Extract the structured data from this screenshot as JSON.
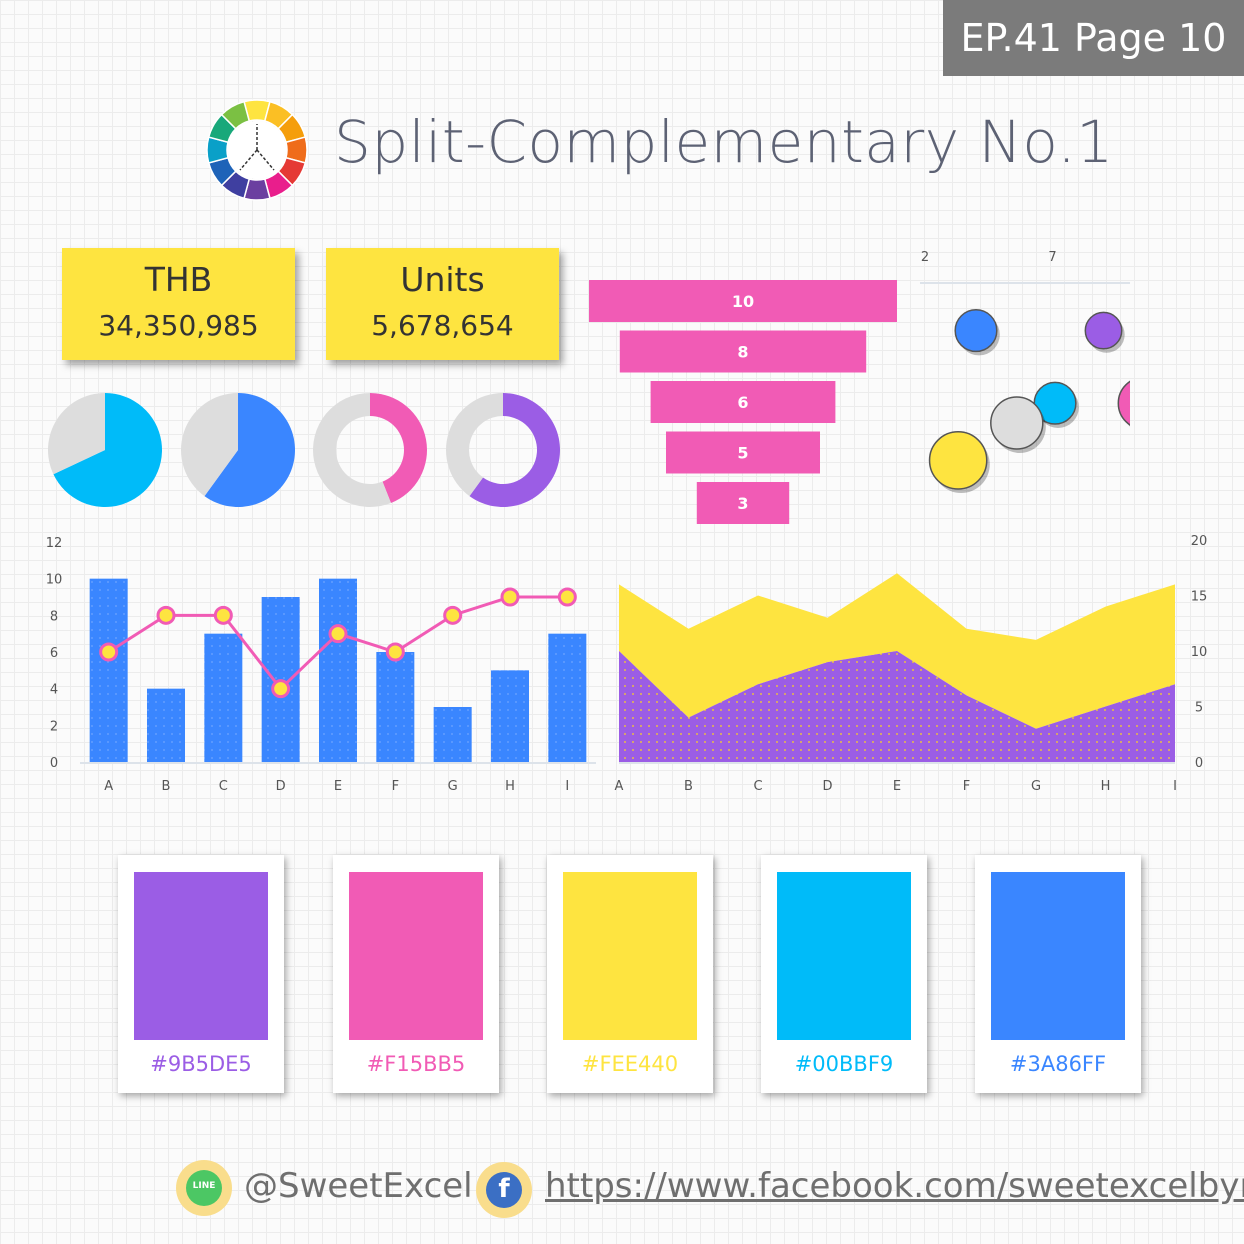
{
  "badge": "EP.41 Page 10",
  "title": "Split-Complementary No.1",
  "colors": {
    "purple": "#9B5DE5",
    "pink": "#F15BB5",
    "yellow": "#FEE440",
    "cyan": "#00BBF9",
    "blue": "#3A86FF",
    "grey": "#DDDDDD"
  },
  "kpis": [
    {
      "label": "THB",
      "value": "34,350,985"
    },
    {
      "label": "Units",
      "value": "5,678,654"
    }
  ],
  "chart_data": [
    {
      "type": "pie",
      "slices": [
        {
          "value": 68,
          "color": "#00BBF9"
        },
        {
          "value": 32,
          "color": "#DDDDDD"
        }
      ]
    },
    {
      "type": "pie",
      "slices": [
        {
          "value": 60,
          "color": "#3A86FF"
        },
        {
          "value": 40,
          "color": "#DDDDDD"
        }
      ]
    },
    {
      "type": "pie",
      "donut": true,
      "slices": [
        {
          "value": 44,
          "color": "#F15BB5"
        },
        {
          "value": 56,
          "color": "#DDDDDD"
        }
      ]
    },
    {
      "type": "pie",
      "donut": true,
      "slices": [
        {
          "value": 60,
          "color": "#9B5DE5"
        },
        {
          "value": 40,
          "color": "#DDDDDD"
        }
      ]
    },
    {
      "type": "bar",
      "subtype": "funnel",
      "values": [
        10,
        8,
        6,
        5,
        3
      ],
      "color": "#F15BB5"
    },
    {
      "type": "scatter",
      "subtype": "bubble",
      "x_ticks": [
        "2",
        "7",
        "12"
      ],
      "y_ticks": [
        "11",
        "9",
        "7",
        "5",
        "3",
        "1"
      ],
      "xlim": [
        2,
        12
      ],
      "ylim": [
        1,
        11
      ],
      "points": [
        {
          "x": 4.0,
          "y": 8.7,
          "size": 0.8,
          "color": "#3A86FF"
        },
        {
          "x": 9.0,
          "y": 8.7,
          "size": 0.7,
          "color": "#9B5DE5"
        },
        {
          "x": 7.1,
          "y": 5.4,
          "size": 0.8,
          "color": "#00BBF9"
        },
        {
          "x": 10.6,
          "y": 5.4,
          "size": 1.0,
          "color": "#F15BB5"
        },
        {
          "x": 5.6,
          "y": 4.5,
          "size": 1.0,
          "color": "#DDDDDD"
        },
        {
          "x": 3.3,
          "y": 2.8,
          "size": 1.1,
          "color": "#FEE440"
        }
      ]
    },
    {
      "type": "bar",
      "subtype": "combo",
      "categories": [
        "A",
        "B",
        "C",
        "D",
        "E",
        "F",
        "G",
        "H",
        "I"
      ],
      "y_ticks": [
        "0",
        "2",
        "4",
        "6",
        "8",
        "10",
        "12"
      ],
      "ylim": [
        0,
        12
      ],
      "series": [
        {
          "type": "bar",
          "values": [
            10,
            4,
            7,
            9,
            10,
            6,
            3,
            5,
            7
          ],
          "color": "#3A86FF"
        },
        {
          "type": "line",
          "values": [
            6,
            8,
            8,
            4,
            7,
            6,
            8,
            9,
            9
          ],
          "color": "#F15BB5",
          "marker": "#FEE440"
        }
      ]
    },
    {
      "type": "area",
      "stacked": true,
      "categories": [
        "A",
        "B",
        "C",
        "D",
        "E",
        "F",
        "G",
        "H",
        "I"
      ],
      "y_ticks": [
        "0",
        "5",
        "10",
        "15",
        "20"
      ],
      "ylim": [
        0,
        20
      ],
      "series": [
        {
          "values": [
            10,
            4,
            7,
            9,
            10,
            6,
            3,
            5,
            7
          ],
          "color": "#9B5DE5"
        },
        {
          "values": [
            6,
            8,
            8,
            4,
            7,
            6,
            8,
            9,
            9
          ],
          "color": "#FEE440"
        }
      ]
    }
  ],
  "palette": [
    {
      "hex": "#9B5DE5",
      "color": "#9B5DE5"
    },
    {
      "hex": "#F15BB5",
      "color": "#F15BB5"
    },
    {
      "hex": "#FEE440",
      "color": "#FEE440"
    },
    {
      "hex": "#00BBF9",
      "color": "#00BBF9"
    },
    {
      "hex": "#3A86FF",
      "color": "#3A86FF"
    }
  ],
  "footer": {
    "line_icon": "line-app-icon",
    "line_label": "LINE",
    "line_handle": "@SweetExcel",
    "facebook_icon": "facebook-icon",
    "facebook_glyph": "f",
    "facebook_url": "https://www.facebook.com/sweetexcelbymd/"
  }
}
